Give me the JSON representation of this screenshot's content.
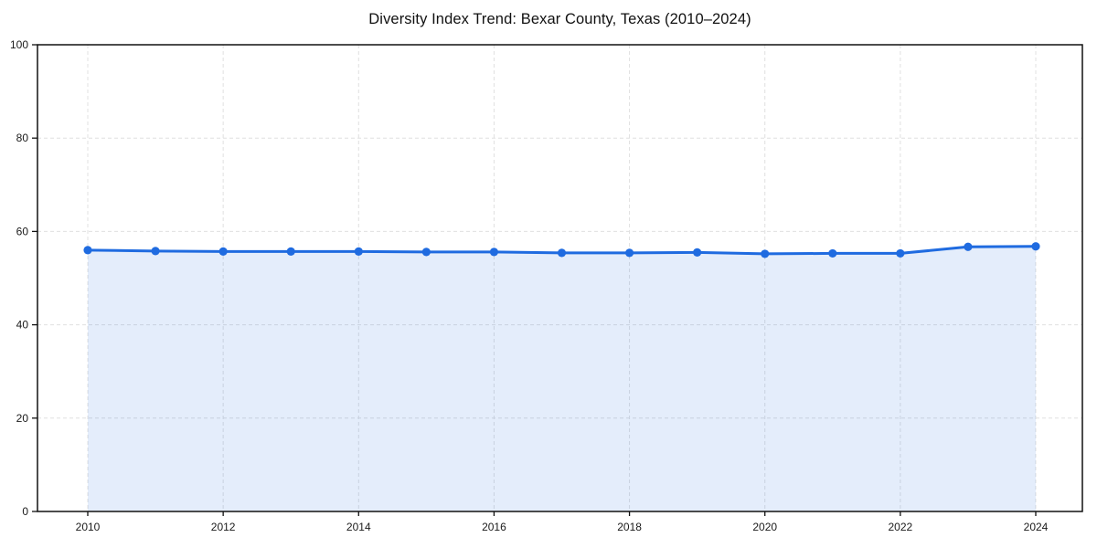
{
  "chart_data": {
    "type": "area",
    "title": "Diversity Index Trend: Bexar County, Texas (2010–2024)",
    "x": [
      2010,
      2011,
      2012,
      2013,
      2014,
      2015,
      2016,
      2017,
      2018,
      2019,
      2020,
      2021,
      2022,
      2023,
      2024
    ],
    "values": [
      56.0,
      55.8,
      55.7,
      55.7,
      55.7,
      55.6,
      55.6,
      55.4,
      55.4,
      55.5,
      55.2,
      55.3,
      55.3,
      56.7,
      56.8
    ],
    "xlabel": "",
    "ylabel": "",
    "ylim": [
      0,
      100
    ],
    "yticks": [
      0,
      20,
      40,
      60,
      80,
      100
    ],
    "xticks": [
      2010,
      2012,
      2014,
      2016,
      2018,
      2020,
      2022,
      2024
    ],
    "grid": true,
    "legend": false,
    "marker": "circle",
    "colors": {
      "line": "#1f6be0",
      "fill": "#1f6be0",
      "fill_opacity": 0.12,
      "grid": "#e0e0e0",
      "axis": "#111111",
      "text": "#1a1a1a"
    }
  }
}
